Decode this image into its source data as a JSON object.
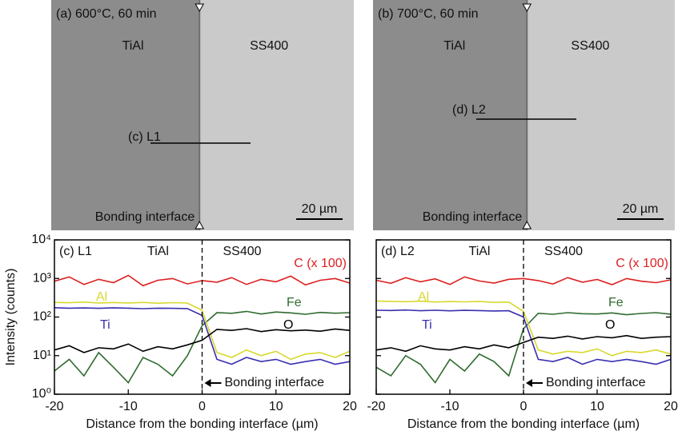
{
  "micrographs": [
    {
      "label": "(a) 600°C, 60 min",
      "left_phase": "TiAl",
      "right_phase": "SS400",
      "line_label": "(c) L1",
      "interface_label": "Bonding interface",
      "scale_bar": "20 µm"
    },
    {
      "label": "(b) 700°C, 60 min",
      "left_phase": "TiAl",
      "right_phase": "SS400",
      "line_label": "(d) L2",
      "interface_label": "Bonding interface",
      "scale_bar": "20 µm"
    }
  ],
  "chart_data": [
    {
      "type": "line",
      "panel_label": "(c) L1",
      "region_labels": [
        "TiAl",
        "SS400"
      ],
      "interface_label": "Bonding interface",
      "x_label": "Distance from the bonding interface (µm)",
      "y_label": "Intensity (counts)",
      "yscale": "log",
      "xlim": [
        -20,
        20
      ],
      "ylim": [
        1,
        10000
      ],
      "xticks": [
        -20,
        -10,
        0,
        10,
        20
      ],
      "yticks": [
        {
          "value": 1,
          "label": "10⁰"
        },
        {
          "value": 10,
          "label": "10¹"
        },
        {
          "value": 100,
          "label": "10²"
        },
        {
          "value": 1000,
          "label": "10³"
        },
        {
          "value": 10000,
          "label": "10⁴"
        }
      ],
      "x": [
        -20,
        -18,
        -16,
        -14,
        -12,
        -10,
        -8,
        -6,
        -4,
        -2,
        0,
        2,
        4,
        6,
        8,
        10,
        12,
        14,
        16,
        18,
        20
      ],
      "series": [
        {
          "name": "C (x 100)",
          "color": "#dd2020",
          "values": [
            850,
            1100,
            700,
            950,
            780,
            1200,
            650,
            900,
            1000,
            720,
            880,
            800,
            1050,
            700,
            950,
            820,
            1150,
            680,
            900,
            1000,
            760
          ]
        },
        {
          "name": "Fe",
          "color": "#2f6b2f",
          "values": [
            4,
            8,
            3,
            12,
            5,
            2,
            9,
            6,
            3,
            10,
            60,
            130,
            125,
            140,
            120,
            135,
            128,
            118,
            132,
            126,
            130
          ]
        },
        {
          "name": "Al",
          "color": "#d8d830",
          "values": [
            240,
            235,
            245,
            230,
            238,
            232,
            240,
            228,
            236,
            230,
            150,
            12,
            9,
            14,
            10,
            13,
            8,
            11,
            12,
            9,
            13
          ]
        },
        {
          "name": "Ti",
          "color": "#3a2fb0",
          "values": [
            175,
            170,
            172,
            168,
            174,
            170,
            165,
            170,
            168,
            166,
            110,
            8,
            6,
            9,
            7,
            8,
            6,
            7,
            8,
            6,
            7
          ]
        },
        {
          "name": "O",
          "color": "#000000",
          "values": [
            14,
            18,
            12,
            16,
            15,
            20,
            13,
            17,
            15,
            19,
            25,
            48,
            45,
            50,
            42,
            47,
            44,
            46,
            43,
            49,
            45
          ]
        }
      ]
    },
    {
      "type": "line",
      "panel_label": "(d) L2",
      "region_labels": [
        "TiAl",
        "SS400"
      ],
      "interface_label": "Bonding interface",
      "x_label": "Distance from the bonding interface (µm)",
      "yscale": "log",
      "xlim": [
        -20,
        20
      ],
      "ylim": [
        1,
        10000
      ],
      "xticks": [
        -20,
        -10,
        0,
        10,
        20
      ],
      "yticks": [
        1,
        10,
        100,
        1000,
        10000
      ],
      "x": [
        -20,
        -18,
        -16,
        -14,
        -12,
        -10,
        -8,
        -6,
        -4,
        -2,
        0,
        2,
        4,
        6,
        8,
        10,
        12,
        14,
        16,
        18,
        20
      ],
      "series": [
        {
          "name": "C (x 100)",
          "color": "#dd2020",
          "values": [
            900,
            750,
            1050,
            820,
            980,
            700,
            1100,
            860,
            760,
            950,
            1000,
            880,
            720,
            1050,
            800,
            940,
            690,
            1000,
            850,
            780,
            920
          ]
        },
        {
          "name": "Fe",
          "color": "#2f6b2f",
          "values": [
            5,
            3,
            10,
            6,
            2,
            8,
            4,
            11,
            7,
            3,
            50,
            125,
            118,
            130,
            122,
            120,
            128,
            115,
            124,
            130,
            119
          ]
        },
        {
          "name": "Al",
          "color": "#d8d830",
          "values": [
            260,
            255,
            250,
            258,
            245,
            252,
            248,
            255,
            240,
            245,
            140,
            14,
            11,
            13,
            12,
            15,
            10,
            13,
            12,
            14,
            11
          ]
        },
        {
          "name": "Ti",
          "color": "#3a2fb0",
          "values": [
            150,
            148,
            152,
            146,
            150,
            145,
            149,
            147,
            144,
            146,
            100,
            8,
            7,
            9,
            6,
            8,
            7,
            8,
            7,
            6,
            8
          ]
        },
        {
          "name": "O",
          "color": "#000000",
          "values": [
            14,
            16,
            13,
            18,
            15,
            14,
            17,
            15,
            19,
            16,
            22,
            30,
            28,
            32,
            27,
            31,
            29,
            33,
            28,
            30,
            31
          ]
        }
      ]
    }
  ]
}
